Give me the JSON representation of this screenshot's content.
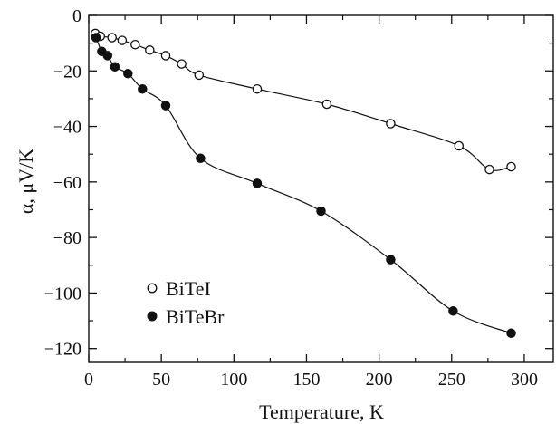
{
  "chart_data": {
    "type": "scatter",
    "title": "",
    "xlabel": "Temperature, K",
    "ylabel": "α, μV/K",
    "xlim": [
      0,
      320
    ],
    "ylim": [
      -125,
      0
    ],
    "xticks": [
      0,
      50,
      100,
      150,
      200,
      250,
      300
    ],
    "yticks": [
      0,
      -20,
      -40,
      -60,
      -80,
      -100,
      -120
    ],
    "xtick_labels": [
      "0",
      "50",
      "100",
      "150",
      "200",
      "250",
      "300"
    ],
    "ytick_labels": [
      "0",
      "−20",
      "−40",
      "−60",
      "−80",
      "−100",
      "−120"
    ],
    "grid": false,
    "legend_position": "bottom-left",
    "series": [
      {
        "name": "BiTeI",
        "marker": "open-circle",
        "color": "#111111",
        "x": [
          4.5,
          8,
          16,
          23,
          32,
          42,
          53,
          64,
          76,
          116,
          164,
          208,
          255,
          276,
          291
        ],
        "y": [
          -6.5,
          -7.5,
          -8,
          -9,
          -10.5,
          -12.5,
          -14.5,
          -17.5,
          -21.5,
          -26.5,
          -32,
          -39,
          -47,
          -55.5,
          -54.5
        ]
      },
      {
        "name": "BiTeBr",
        "marker": "filled-circle",
        "color": "#111111",
        "x": [
          5,
          9,
          13,
          18,
          27,
          37,
          53,
          77,
          116,
          160,
          208,
          251,
          291
        ],
        "y": [
          -8,
          -13,
          -14.5,
          -18.5,
          -21,
          -26.5,
          -32.5,
          -51.5,
          -60.5,
          -70.5,
          -88,
          -106.5,
          -114.5
        ]
      }
    ]
  }
}
